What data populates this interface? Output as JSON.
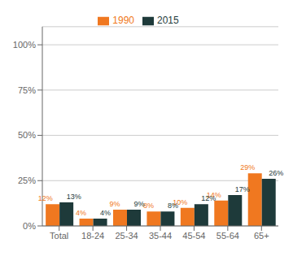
{
  "chart_data": {
    "type": "bar",
    "categories": [
      "Total",
      "18-24",
      "25-34",
      "35-44",
      "45-54",
      "55-64",
      "65+"
    ],
    "series": [
      {
        "name": "1990",
        "color": "#f07820",
        "values": [
          12,
          4,
          9,
          8,
          10,
          14,
          29
        ],
        "value_labels": [
          "12%",
          "4%",
          "9%",
          "8%",
          "10%",
          "14%",
          "29%"
        ]
      },
      {
        "name": "2015",
        "color": "#1e3a3a",
        "values": [
          13,
          4,
          9,
          8,
          12,
          17,
          26
        ],
        "value_labels": [
          "13%",
          "4%",
          "9%",
          "8%",
          "12%",
          "17%",
          "26%"
        ]
      }
    ],
    "ylim": [
      0,
      110
    ],
    "yticks": [
      {
        "value": 0,
        "label": "0%"
      },
      {
        "value": 25,
        "label": "25%"
      },
      {
        "value": 50,
        "label": "50%"
      },
      {
        "value": 75,
        "label": "75%"
      },
      {
        "value": 100,
        "label": "100%"
      }
    ],
    "grid": true,
    "legend": "top",
    "data_labels": true
  }
}
